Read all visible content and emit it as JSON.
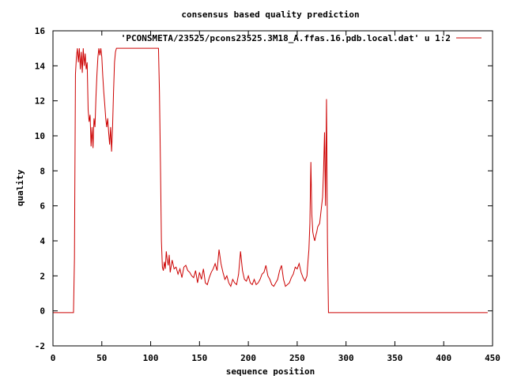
{
  "chart_data": {
    "type": "line",
    "title": "consensus based quality prediction",
    "xlabel": "sequence position",
    "ylabel": "quality",
    "xlim": [
      0,
      450
    ],
    "ylim": [
      -2,
      16
    ],
    "xticks": [
      0,
      50,
      100,
      150,
      200,
      250,
      300,
      350,
      400,
      450
    ],
    "yticks": [
      -2,
      0,
      2,
      4,
      6,
      8,
      10,
      12,
      14,
      16
    ],
    "grid": false,
    "legend_position": "top-right",
    "series": [
      {
        "name": "'PCONSMETA/23525/pcons23525.3M18_A.ffas.16.pdb.local.dat' u 1:2",
        "color": "#cc0000",
        "x": [
          0,
          21,
          22,
          23,
          24,
          25,
          26,
          27,
          28,
          29,
          30,
          31,
          32,
          33,
          34,
          35,
          36,
          37,
          38,
          39,
          40,
          41,
          42,
          43,
          44,
          45,
          46,
          47,
          48,
          49,
          50,
          51,
          52,
          53,
          54,
          55,
          56,
          57,
          58,
          59,
          60,
          61,
          62,
          63,
          64,
          65,
          66,
          67,
          68,
          69,
          70,
          80,
          90,
          100,
          108,
          109,
          110,
          111,
          112,
          113,
          114,
          115,
          116,
          117,
          118,
          119,
          120,
          122,
          124,
          126,
          128,
          130,
          132,
          134,
          136,
          138,
          140,
          142,
          144,
          146,
          148,
          150,
          152,
          154,
          156,
          158,
          160,
          162,
          164,
          166,
          168,
          170,
          172,
          174,
          176,
          178,
          180,
          182,
          184,
          186,
          188,
          190,
          192,
          194,
          196,
          198,
          200,
          202,
          204,
          206,
          208,
          210,
          212,
          214,
          216,
          218,
          220,
          222,
          224,
          226,
          228,
          230,
          232,
          234,
          236,
          238,
          240,
          242,
          244,
          246,
          248,
          250,
          252,
          254,
          256,
          258,
          260,
          261,
          262,
          263,
          264,
          265,
          266,
          267,
          268,
          269,
          270,
          271,
          272,
          273,
          274,
          275,
          276,
          277,
          278,
          279,
          280,
          281,
          282,
          283,
          284,
          300,
          350,
          400,
          445
        ],
        "y": [
          -0.1,
          -0.1,
          3,
          13.5,
          14.5,
          15,
          14.2,
          15,
          13.8,
          14.8,
          13.6,
          15,
          14,
          14.7,
          13.8,
          14.2,
          11.5,
          10.8,
          11.2,
          9.4,
          10.5,
          9.3,
          11,
          10.5,
          12.2,
          13.5,
          14.5,
          15,
          14.6,
          15,
          14.5,
          13.4,
          12.5,
          11.8,
          11,
          10.5,
          11,
          10.2,
          9.5,
          10.5,
          9.1,
          10.5,
          12.5,
          14.2,
          14.8,
          15,
          15,
          15,
          15,
          15,
          15,
          15,
          15,
          15,
          15,
          12.5,
          8.5,
          4,
          2.5,
          2.3,
          2.8,
          2.4,
          3.4,
          2.9,
          2.6,
          3.2,
          2.2,
          2.9,
          2.4,
          2.5,
          2.1,
          2.4,
          1.9,
          2.5,
          2.6,
          2.3,
          2.2,
          2,
          1.9,
          2.3,
          1.6,
          2.2,
          1.8,
          2.4,
          1.6,
          1.5,
          1.9,
          2.2,
          2.4,
          2.7,
          2.3,
          3.5,
          2.7,
          2.2,
          1.8,
          2,
          1.6,
          1.4,
          1.8,
          1.6,
          1.5,
          2.1,
          3.4,
          2.3,
          1.8,
          1.7,
          2,
          1.6,
          1.5,
          1.8,
          1.5,
          1.6,
          1.8,
          2.1,
          2.2,
          2.6,
          2,
          1.8,
          1.5,
          1.4,
          1.6,
          1.8,
          2.3,
          2.6,
          1.8,
          1.4,
          1.5,
          1.6,
          1.9,
          2.1,
          2.5,
          2.4,
          2.7,
          2.2,
          1.9,
          1.7,
          2,
          2.8,
          3.5,
          5,
          8.5,
          5.5,
          4.5,
          4.2,
          4,
          4.3,
          4.5,
          4.8,
          4.9,
          5,
          5.5,
          6,
          6.5,
          8,
          10.2,
          6,
          12.1,
          4,
          -0.1,
          -0.1,
          -0.1,
          -0.1,
          -0.1,
          -0.1,
          -0.1
        ]
      }
    ]
  }
}
